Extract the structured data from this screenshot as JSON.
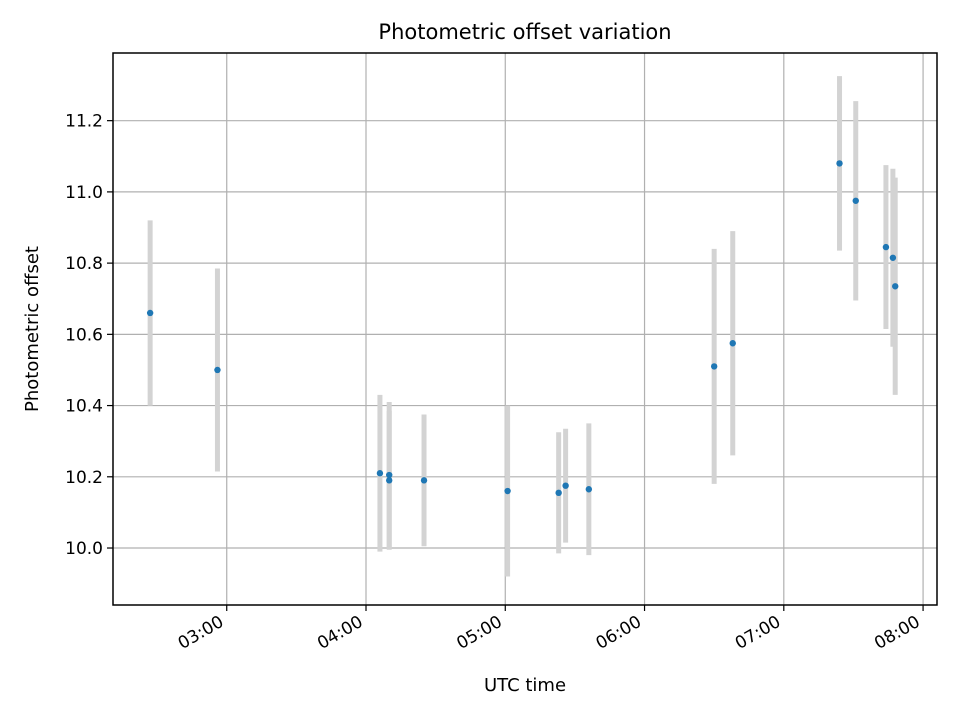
{
  "chart_data": {
    "type": "scatter",
    "title": "Photometric offset variation",
    "xlabel": "UTC time",
    "ylabel": "Photometric offset",
    "xlim": [
      "02:11",
      "08:06"
    ],
    "ylim": [
      9.84,
      11.39
    ],
    "x_ticks": [
      "03:00",
      "04:00",
      "05:00",
      "06:00",
      "07:00",
      "08:00"
    ],
    "y_ticks": [
      10.0,
      10.2,
      10.4,
      10.6,
      10.8,
      11.0,
      11.2
    ],
    "y_tick_labels": [
      "10.0",
      "10.2",
      "10.4",
      "10.6",
      "10.8",
      "11.0",
      "11.2"
    ],
    "grid": true,
    "marker_color": "#1f77b4",
    "errorbar_color": "#d3d3d3",
    "series": [
      {
        "points": [
          {
            "x": "02:27",
            "y": 10.66,
            "err": 0.26
          },
          {
            "x": "02:56",
            "y": 10.5,
            "err": 0.285
          },
          {
            "x": "04:06",
            "y": 10.21,
            "err": 0.22
          },
          {
            "x": "04:10",
            "y": 10.205,
            "err": 0.205
          },
          {
            "x": "04:10",
            "y": 10.19,
            "err": 0.195
          },
          {
            "x": "04:25",
            "y": 10.19,
            "err": 0.185
          },
          {
            "x": "05:01",
            "y": 10.16,
            "err": 0.24
          },
          {
            "x": "05:23",
            "y": 10.155,
            "err": 0.17
          },
          {
            "x": "05:26",
            "y": 10.175,
            "err": 0.16
          },
          {
            "x": "05:36",
            "y": 10.165,
            "err": 0.185
          },
          {
            "x": "06:30",
            "y": 10.51,
            "err": 0.33
          },
          {
            "x": "06:38",
            "y": 10.575,
            "err": 0.315
          },
          {
            "x": "07:24",
            "y": 11.08,
            "err": 0.245
          },
          {
            "x": "07:31",
            "y": 10.975,
            "err": 0.28
          },
          {
            "x": "07:44",
            "y": 10.845,
            "err": 0.23
          },
          {
            "x": "07:47",
            "y": 10.815,
            "err": 0.25
          },
          {
            "x": "07:48",
            "y": 10.735,
            "err": 0.305
          }
        ]
      }
    ]
  }
}
